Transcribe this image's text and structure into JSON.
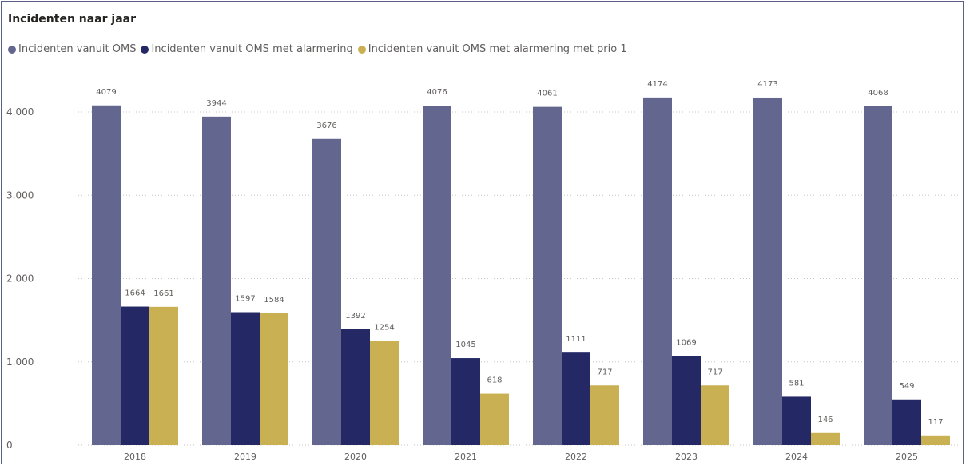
{
  "chart_data": {
    "type": "bar",
    "title": "Incidenten naar jaar",
    "categories": [
      "2018",
      "2019",
      "2020",
      "2021",
      "2022",
      "2023",
      "2024",
      "2025"
    ],
    "series": [
      {
        "name": "Incidenten vanuit OMS",
        "color": "#63668f",
        "values": [
          4079,
          3944,
          3676,
          4076,
          4061,
          4174,
          4173,
          4068
        ]
      },
      {
        "name": "Incidenten vanuit OMS met alarmering",
        "color": "#242966",
        "values": [
          1664,
          1597,
          1392,
          1045,
          1111,
          1069,
          581,
          549
        ]
      },
      {
        "name": "Incidenten vanuit OMS met alarmering met prio 1",
        "color": "#c9b052",
        "values": [
          1661,
          1584,
          1254,
          618,
          717,
          717,
          146,
          117
        ]
      }
    ],
    "ylim": [
      0,
      4800
    ],
    "yticks": [
      0,
      1000,
      2000,
      3000,
      4000
    ],
    "ytick_labels": [
      "0",
      "1.000",
      "2.000",
      "3.000",
      "4.000"
    ],
    "grid": true,
    "legend_position": "top-left"
  }
}
